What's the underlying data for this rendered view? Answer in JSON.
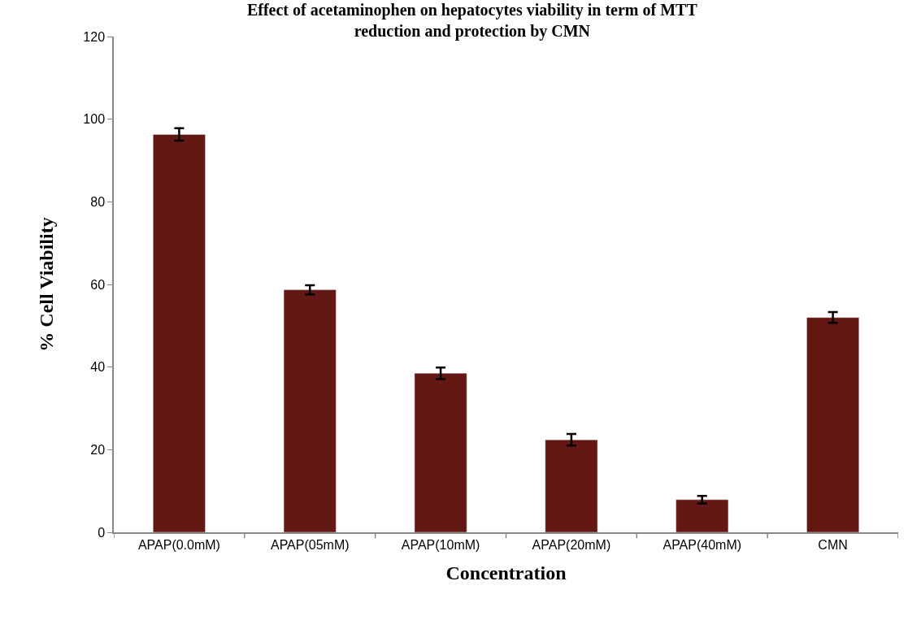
{
  "chart_data": {
    "type": "bar",
    "title": "Effect of acetaminophen on hepatocytes viability in term of MTT\nreduction and protection by CMN",
    "xlabel": "Concentration",
    "ylabel": "% Cell Viability",
    "categories": [
      "APAP(0.0mM)",
      "APAP(05mM)",
      "APAP(10mM)",
      "APAP(20mM)",
      "APAP(40mM)",
      "CMN"
    ],
    "values": [
      96.3,
      58.7,
      38.5,
      22.4,
      7.9,
      52.0
    ],
    "errors": [
      1.5,
      1.1,
      1.4,
      1.4,
      0.9,
      1.3
    ],
    "color": "#631813",
    "ylim": [
      0,
      120
    ],
    "yticks": [
      0,
      20,
      40,
      60,
      80,
      100,
      120
    ]
  }
}
